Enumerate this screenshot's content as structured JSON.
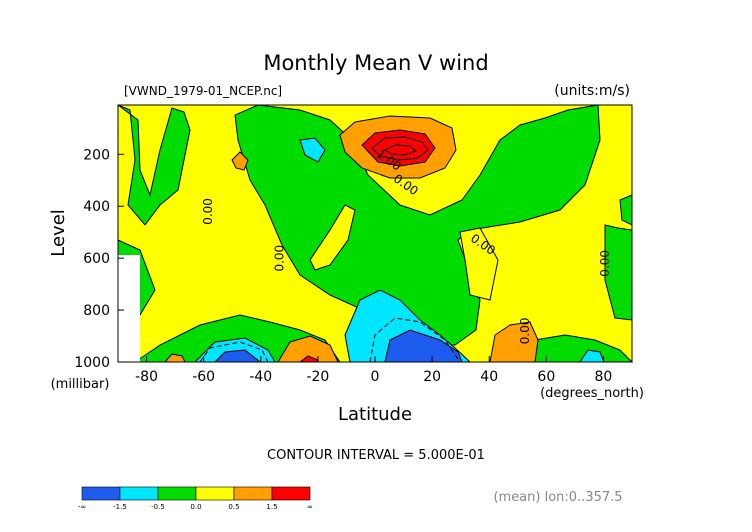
{
  "chart_data": {
    "type": "heatmap",
    "title": "Monthly Mean V wind",
    "subtitle_left": "[VWND_1979-01_NCEP.nc]",
    "subtitle_right": "(units:m/s)",
    "xlabel": "Latitude",
    "xunit": "(degrees_north)",
    "ylabel": "Level",
    "yunit": "(millibar)",
    "xlim": [
      -90,
      90
    ],
    "ylim": [
      1000,
      10
    ],
    "x_ticks": [
      -80,
      -60,
      -40,
      -20,
      0,
      20,
      40,
      60,
      80
    ],
    "y_ticks": [
      200,
      400,
      600,
      800,
      1000
    ],
    "contour_interval_text": "CONTOUR INTERVAL = 5.000E-01",
    "footnote": "(mean) lon:0..357.5",
    "contour_labels": [
      {
        "text": "0.00",
        "lat": -57,
        "level": 420
      },
      {
        "text": "0.00",
        "lat": -32,
        "level": 600
      },
      {
        "text": "1.00",
        "lat": 4,
        "level": 235
      },
      {
        "text": "0.00",
        "lat": 10,
        "level": 330
      },
      {
        "text": "0.00",
        "lat": 37,
        "level": 560
      },
      {
        "text": "0.00",
        "lat": 54,
        "level": 880
      },
      {
        "text": "0.00",
        "lat": 82,
        "level": 620
      }
    ],
    "colorbar": {
      "levels": [
        "-∞",
        "-1.5",
        "-0.5",
        "0.0",
        "0.5",
        "1.5",
        "∞"
      ],
      "colors": [
        "#1e5cf0",
        "#00e6ff",
        "#00dc00",
        "#ffff00",
        "#ffa000",
        "#ff0000"
      ]
    },
    "colors": {
      "blue": "#1e5cf0",
      "cyan": "#00e6ff",
      "green": "#00dc00",
      "yellow": "#ffff00",
      "orange": "#ffa000",
      "red": "#ff0000"
    }
  }
}
